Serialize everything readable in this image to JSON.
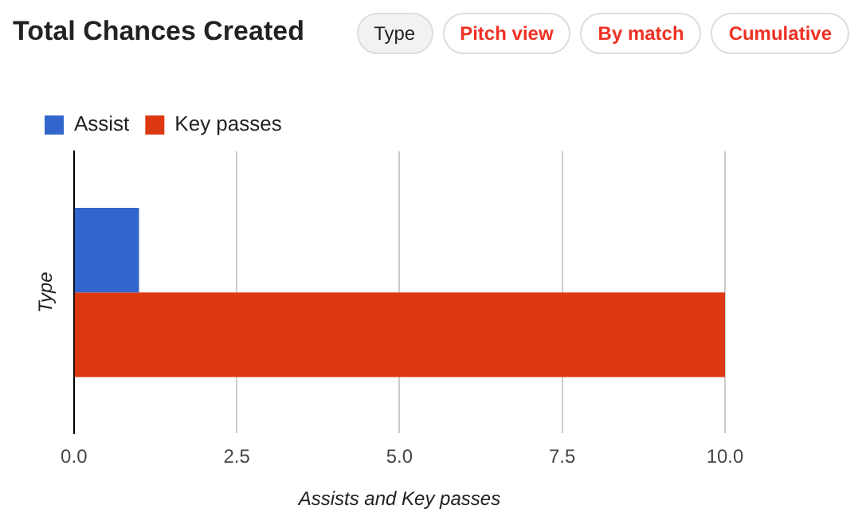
{
  "chart_data": {
    "type": "bar",
    "orientation": "horizontal",
    "title": "Total Chances Created",
    "annotations": [
      "Type",
      "Pitch view",
      "By match",
      "Cumulative"
    ],
    "ylabel": "Type",
    "xlabel": "Assists and Key passes",
    "categories": [
      null
    ],
    "series": [
      {
        "name": "Assist",
        "color": "#3366cc",
        "values": [
          1
        ]
      },
      {
        "name": "Key passes",
        "color": "#dc3912",
        "values": [
          10
        ]
      }
    ],
    "xlim": [
      0,
      10
    ],
    "xticks": [
      {
        "value": 0,
        "label": "0.0"
      },
      {
        "value": 2.5,
        "label": "2.5"
      },
      {
        "value": 5,
        "label": "5.0"
      },
      {
        "value": 7.5,
        "label": "7.5"
      },
      {
        "value": 10,
        "label": "10.0"
      }
    ],
    "grid": "x",
    "legend": "top left"
  }
}
